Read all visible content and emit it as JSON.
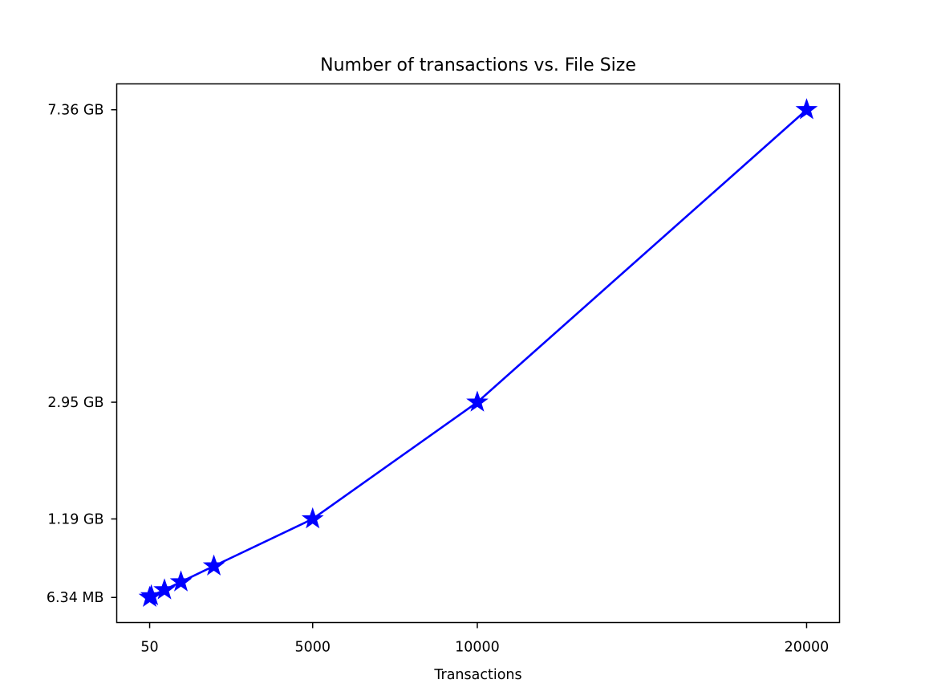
{
  "chart_data": {
    "type": "line",
    "title": "Number of transactions vs. File Size",
    "xlabel": "Transactions",
    "ylabel": "",
    "x": [
      50,
      100,
      500,
      1000,
      2000,
      5000,
      10000,
      20000
    ],
    "y_tick_labels": [
      "6.34 MB",
      "1.19 GB",
      "2.95 GB",
      "7.36 GB"
    ],
    "x_tick_labels": [
      "50",
      "5000",
      "10000",
      "20000"
    ],
    "series": [
      {
        "name": "",
        "x": [
          50,
          100,
          500,
          1000,
          2000,
          5000,
          10000,
          20000
        ],
        "y_gb": [
          0.00634,
          0.03,
          0.12,
          0.24,
          0.48,
          1.19,
          2.95,
          7.36
        ],
        "marker": "star",
        "color": "#0000ff"
      }
    ],
    "xlim": [
      -950,
      21000
    ],
    "ylim_gb": [
      -0.372,
      7.75
    ],
    "x_ticks": [
      50,
      5000,
      10000,
      20000
    ],
    "y_ticks_gb": [
      0.00634,
      1.19,
      2.95,
      7.36
    ],
    "grid": false,
    "legend": "none"
  }
}
